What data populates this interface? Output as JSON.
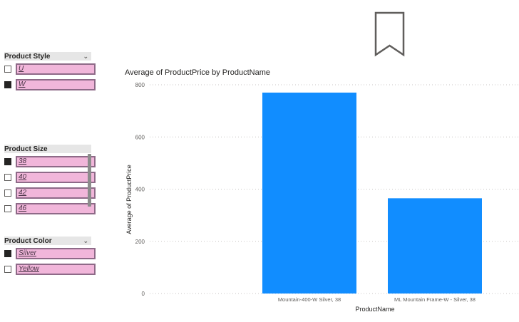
{
  "bookmark": {
    "icon": "bookmark-icon"
  },
  "slicers": {
    "style": {
      "title": "Product Style",
      "items": [
        {
          "label": "U",
          "checked": false
        },
        {
          "label": "W",
          "checked": true
        }
      ]
    },
    "size": {
      "title": "Product Size",
      "items": [
        {
          "label": "38",
          "checked": true
        },
        {
          "label": "40",
          "checked": false
        },
        {
          "label": "42",
          "checked": false
        },
        {
          "label": "46",
          "checked": false
        }
      ]
    },
    "color": {
      "title": "Product Color",
      "items": [
        {
          "label": "Silver",
          "checked": true
        },
        {
          "label": "Yellow",
          "checked": false
        }
      ]
    }
  },
  "chart_title": "Average of ProductPrice by ProductName",
  "chart_data": {
    "type": "bar",
    "title": "Average of ProductPrice by ProductName",
    "categories": [
      "Mountain-400-W Silver, 38",
      "ML Mountain Frame-W - Silver, 38"
    ],
    "values": [
      770,
      365
    ],
    "xlabel": "ProductName",
    "ylabel": "Average of ProductPrice",
    "ylim": [
      0,
      800
    ],
    "yticks": [
      0,
      200,
      400,
      600,
      800
    ],
    "grid": true,
    "bar_color": "#118dff"
  },
  "colors": {
    "bar": "#118dff",
    "slicer_item": "#f1b6da",
    "slicer_border": "#8e6a88"
  }
}
